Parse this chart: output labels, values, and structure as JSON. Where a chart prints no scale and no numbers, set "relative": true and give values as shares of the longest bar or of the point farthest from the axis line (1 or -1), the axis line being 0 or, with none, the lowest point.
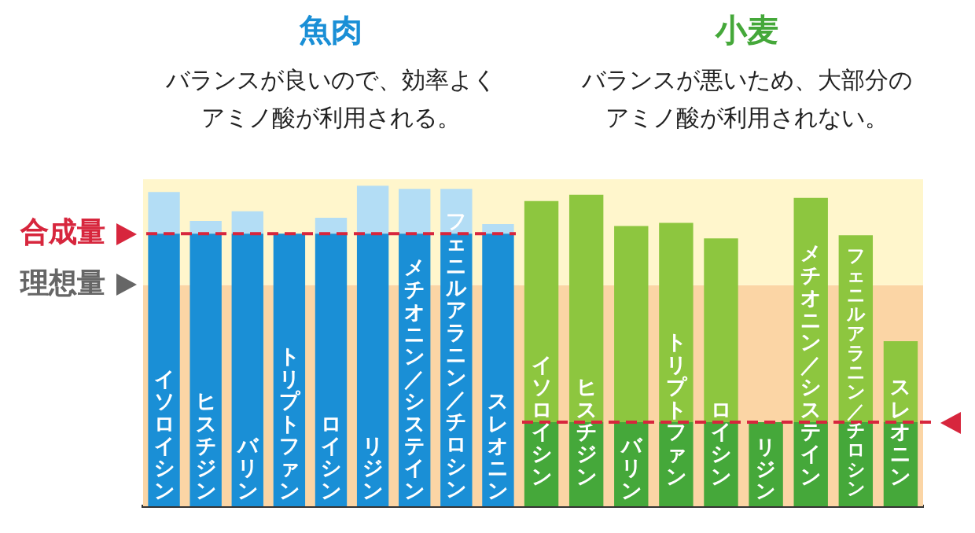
{
  "chart_data": [
    {
      "type": "bar",
      "title": "魚肉",
      "subtitle": "バランスが良いので、効率よくアミノ酸が利用される。",
      "relative": true,
      "stacked": true,
      "categories": [
        "イソロイシン",
        "ヒスチジン",
        "バリン",
        "トリプトファン",
        "ロイシン",
        "リジン",
        "メチオニン／システイン",
        "フェニルアラニン／チロシン",
        "スレオニン"
      ],
      "series": [
        {
          "color": "#1a8fd6",
          "values": [
            0.85,
            0.85,
            0.85,
            0.85,
            0.85,
            0.85,
            0.85,
            0.85,
            0.85
          ]
        },
        {
          "color": "#b3ddf5",
          "values": [
            0.13,
            0.04,
            0.07,
            0,
            0.05,
            0.15,
            0.14,
            0.14,
            0.03
          ]
        }
      ],
      "bands": [
        {
          "axis": "y",
          "from": 0,
          "to": 0.69,
          "label": "理想量",
          "color": "#fbd5a5"
        },
        {
          "axis": "y",
          "from": 0.69,
          "to": 1.02,
          "color": "#fff6cc"
        }
      ],
      "ref_lines": [
        {
          "axis": "y",
          "value": 0.85,
          "label": "合成量",
          "color": "#d7263d",
          "line_style": "dashed"
        }
      ]
    },
    {
      "type": "bar",
      "title": "小麦",
      "subtitle": "バランスが悪いため、大部分のアミノ酸が利用されない。",
      "relative": true,
      "stacked": true,
      "categories": [
        "イソロイシン",
        "ヒスチジン",
        "バリン",
        "トリプトファン",
        "ロイシン",
        "リジン",
        "メチオニン／システイン",
        "フェニルアラニン／チロシン",
        "スレオニン"
      ],
      "series": [
        {
          "color": "#45a83a",
          "values": [
            0.27,
            0.27,
            0.27,
            0.27,
            0.27,
            0.27,
            0.27,
            0.27,
            0.27
          ]
        },
        {
          "color": "#8dc63f",
          "values": [
            0.71,
            0.73,
            0.63,
            0.64,
            0.59,
            0,
            0.72,
            0.6,
            0.26
          ]
        }
      ],
      "bands": [
        {
          "axis": "y",
          "from": 0,
          "to": 0.71,
          "color": "#fbd5a5"
        },
        {
          "axis": "y",
          "from": 0.71,
          "to": 1.05,
          "color": "#fff6cc"
        }
      ],
      "ref_lines": [
        {
          "axis": "y",
          "value": 0.27,
          "label": null,
          "color": "#d7263d",
          "line_style": "dashed"
        }
      ]
    }
  ]
}
